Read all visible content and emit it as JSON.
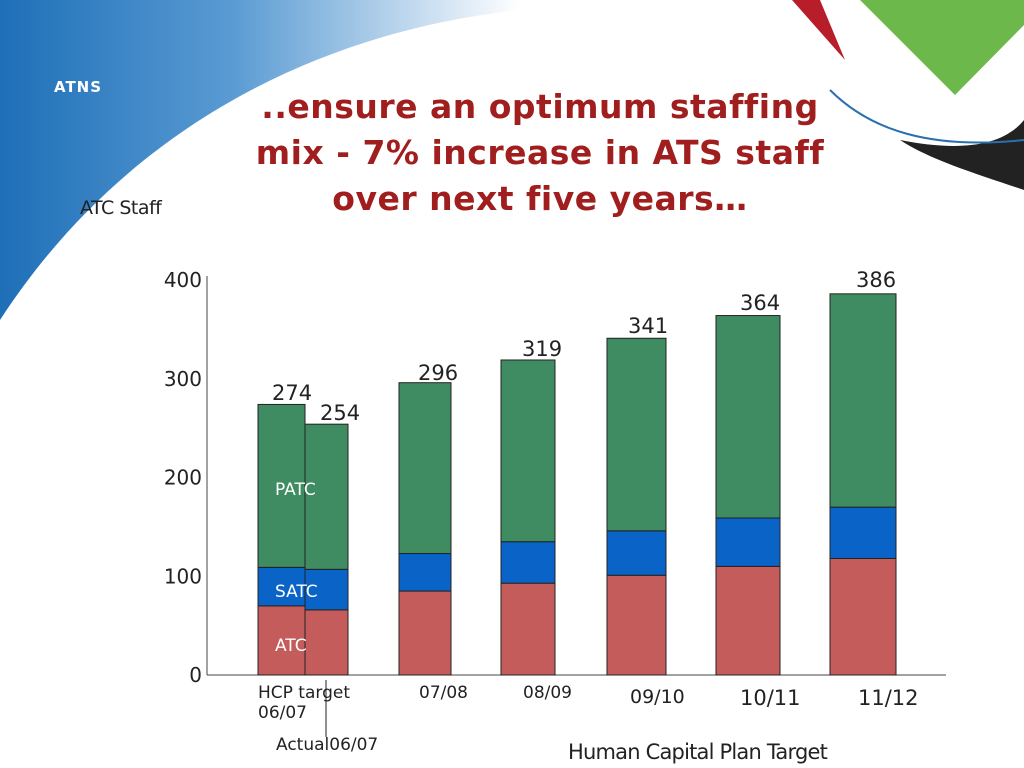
{
  "slide": {
    "logo_text": "ATNS",
    "title_lines": [
      "..ensure an optimum staffing",
      "mix - 7% increase in ATS staff",
      "over next five years…"
    ],
    "side_label": "ATC Staff",
    "footnote": "Human Capital Plan Target",
    "actual_label": "Actual06/07"
  },
  "colors": {
    "atc": "#c45c5c",
    "satc": "#0a64c8",
    "patc": "#3f8c62",
    "title": "#a01e1e",
    "band": "#1e6fb8"
  },
  "chart_data": {
    "type": "bar",
    "stacked": true,
    "ylim": [
      0,
      400
    ],
    "yticks": [
      0,
      100,
      200,
      300,
      400
    ],
    "categories": [
      "HCP target 06/07",
      "Actual06/07",
      "07/08",
      "08/09",
      "09/10",
      "10/11",
      "11/12"
    ],
    "category_labels": [
      "HCP target\n06/07",
      "",
      "07/08",
      "08/09",
      "09/10",
      "10/11",
      "11/12"
    ],
    "series": [
      {
        "name": "ATC",
        "values": [
          70,
          66,
          85,
          93,
          101,
          110,
          118
        ]
      },
      {
        "name": "SATC",
        "values": [
          39,
          41,
          38,
          42,
          45,
          49,
          52
        ]
      },
      {
        "name": "PATC",
        "values": [
          165,
          147,
          173,
          184,
          195,
          205,
          216
        ]
      }
    ],
    "totals": [
      274,
      254,
      296,
      319,
      341,
      364,
      386
    ],
    "grid": false
  }
}
